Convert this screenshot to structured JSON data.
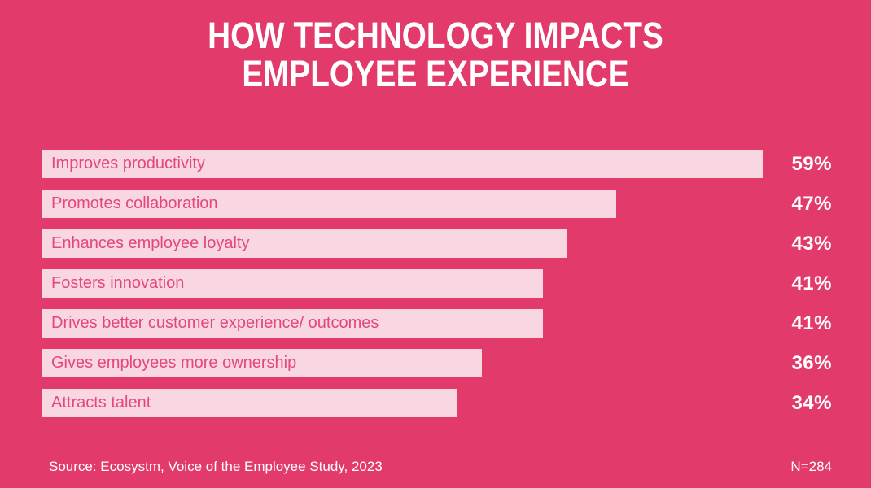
{
  "title": {
    "line1": "HOW TECHNOLOGY IMPACTS",
    "line2": "EMPLOYEE EXPERIENCE"
  },
  "chart_data": {
    "type": "bar",
    "orientation": "horizontal",
    "title": "HOW TECHNOLOGY IMPACTS EMPLOYEE EXPERIENCE",
    "categories": [
      "Improves productivity",
      "Promotes collaboration",
      "Enhances employee loyalty",
      "Fosters innovation",
      "Drives better customer experience/ outcomes",
      "Gives employees more ownership",
      "Attracts talent"
    ],
    "values": [
      59,
      47,
      43,
      41,
      41,
      36,
      34
    ],
    "value_suffix": "%",
    "value_label_position": "right",
    "category_label_position": "inside-bar-left",
    "grid": false,
    "axes_visible": false,
    "xlim": [
      0,
      66
    ],
    "sorted": "descending"
  },
  "footer": {
    "source": "Source: Ecosystm, Voice of the Employee Study, 2023",
    "sample": "N=284"
  },
  "colors": {
    "background": "#e23a6b",
    "bar_fill": "#f8d7e2",
    "bar_label_text": "#e5477b",
    "title_text": "#ffffff",
    "value_text": "#ffffff",
    "footer_text": "#ffffff"
  }
}
